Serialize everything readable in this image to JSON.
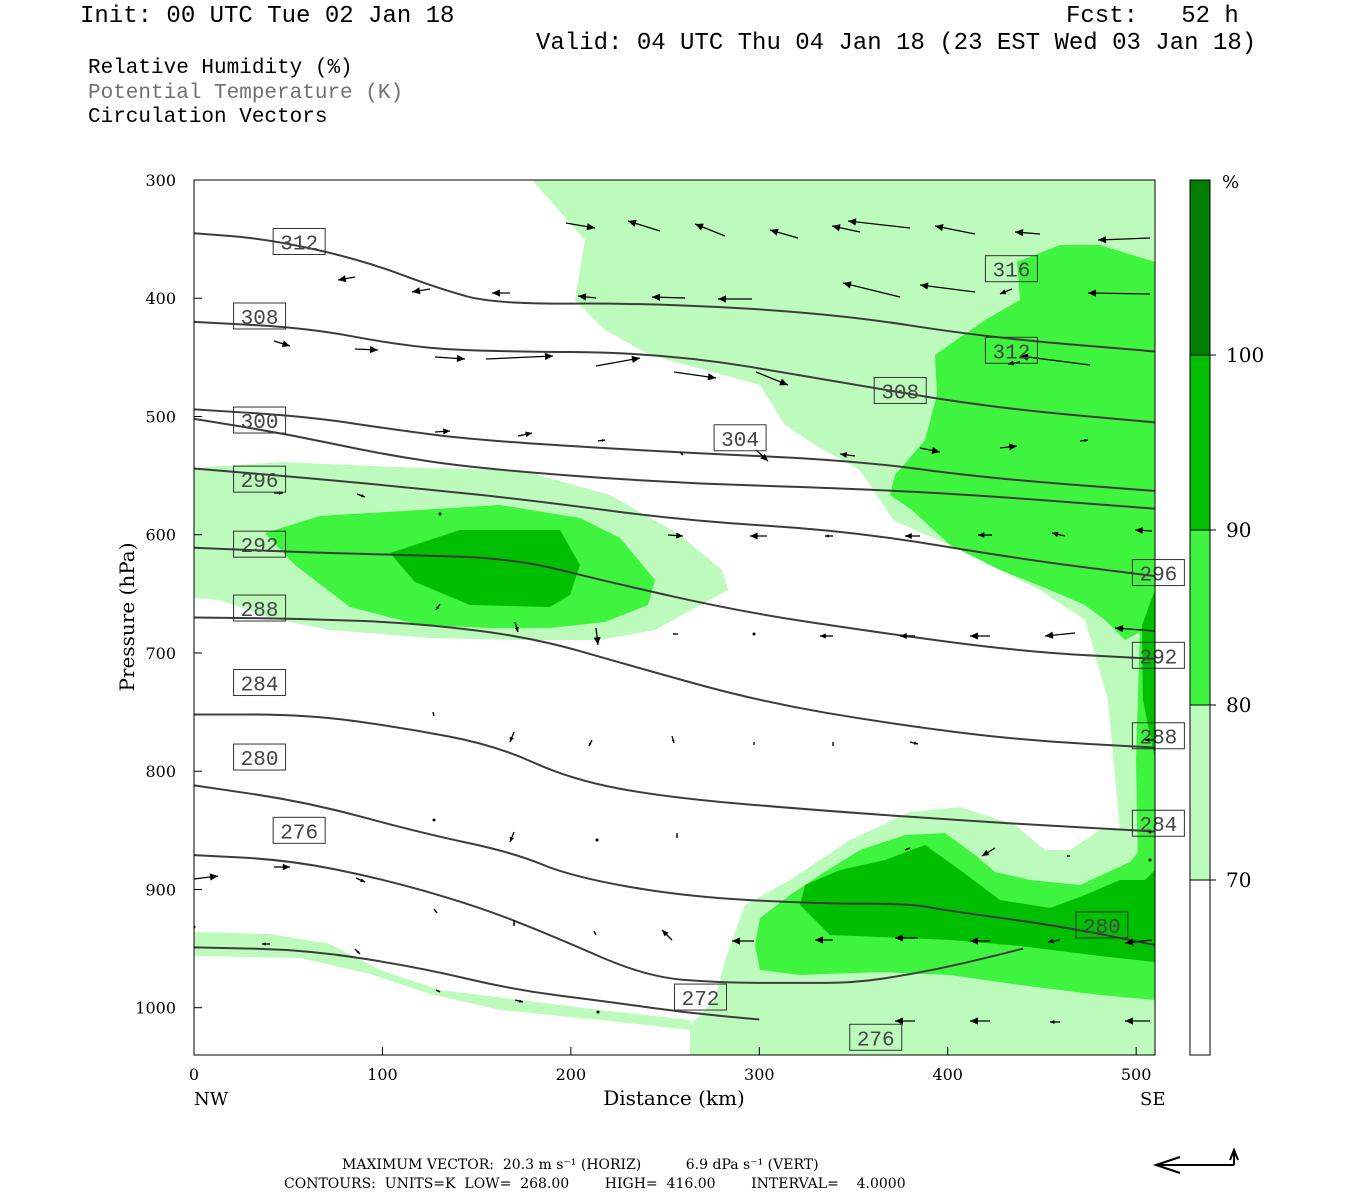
{
  "header": {
    "init": "Init: 00 UTC Tue 02 Jan 18",
    "fcst": "Fcst:   52 h",
    "valid": "Valid: 04 UTC Thu 04 Jan 18 (23 EST Wed 03 Jan 18)"
  },
  "legend": {
    "rh": "Relative Humidity (%)",
    "theta": "Potential Temperature (K)",
    "vectors": "Circulation Vectors"
  },
  "colors": {
    "rh70": "#bdfbbd",
    "rh80": "#3ff43f",
    "rh90": "#00bf00",
    "rh100": "#007f00",
    "contour": "#3c3c3c",
    "theta_label": "#707070"
  },
  "chart_data": {
    "type": "cross-section",
    "xlabel": "Distance (km)",
    "ylabel": "Pressure (hPa)",
    "xlim": [
      0,
      510
    ],
    "ylim": [
      1040,
      300
    ],
    "xticks": [
      0,
      100,
      200,
      300,
      400,
      500
    ],
    "yticks": [
      300,
      400,
      500,
      600,
      700,
      800,
      900,
      1000
    ],
    "left_end_label": "NW",
    "right_end_label": "SE",
    "colorbar": {
      "unit": "%",
      "levels": [
        70,
        80,
        90,
        100
      ],
      "colors": [
        "#ffffff",
        "#bdfbbd",
        "#3ff43f",
        "#00bf00",
        "#007f00"
      ]
    },
    "theta_contours": [
      {
        "value": 312,
        "points": [
          [
            0,
            345
          ],
          [
            40,
            350
          ],
          [
            90,
            368
          ],
          [
            130,
            392
          ],
          [
            160,
            405
          ],
          [
            240,
            404
          ],
          [
            340,
            413
          ],
          [
            420,
            433
          ],
          [
            510,
            445
          ]
        ]
      },
      {
        "value": 308,
        "points": [
          [
            0,
            420
          ],
          [
            60,
            425
          ],
          [
            110,
            440
          ],
          [
            150,
            445
          ],
          [
            250,
            446
          ],
          [
            340,
            470
          ],
          [
            420,
            492
          ],
          [
            510,
            505
          ]
        ]
      },
      {
        "value": 304,
        "points": [
          [
            0,
            494
          ],
          [
            60,
            500
          ],
          [
            110,
            512
          ],
          [
            150,
            520
          ],
          [
            250,
            530
          ],
          [
            350,
            537
          ],
          [
            420,
            552
          ],
          [
            510,
            563
          ]
        ]
      },
      {
        "value": 300,
        "points": [
          [
            0,
            502
          ],
          [
            50,
            515
          ],
          [
            100,
            532
          ],
          [
            150,
            544
          ],
          [
            250,
            556
          ],
          [
            350,
            561
          ],
          [
            420,
            567
          ],
          [
            510,
            578
          ]
        ]
      },
      {
        "value": 296,
        "points": [
          [
            0,
            544
          ],
          [
            60,
            552
          ],
          [
            120,
            561
          ],
          [
            180,
            571
          ],
          [
            260,
            588
          ],
          [
            350,
            597
          ],
          [
            440,
            621
          ],
          [
            510,
            635
          ]
        ]
      },
      {
        "value": 292,
        "points": [
          [
            0,
            611
          ],
          [
            60,
            615
          ],
          [
            110,
            617
          ],
          [
            170,
            620
          ],
          [
            220,
            640
          ],
          [
            290,
            665
          ],
          [
            360,
            682
          ],
          [
            440,
            699
          ],
          [
            510,
            705
          ]
        ]
      },
      {
        "value": 288,
        "points": [
          [
            0,
            670
          ],
          [
            60,
            671
          ],
          [
            120,
            675
          ],
          [
            180,
            687
          ],
          [
            230,
            710
          ],
          [
            300,
            741
          ],
          [
            370,
            760
          ],
          [
            440,
            774
          ],
          [
            510,
            780
          ]
        ]
      },
      {
        "value": 284,
        "points": [
          [
            0,
            752
          ],
          [
            60,
            752
          ],
          [
            110,
            763
          ],
          [
            160,
            778
          ],
          [
            200,
            807
          ],
          [
            250,
            822
          ],
          [
            330,
            833
          ],
          [
            420,
            843
          ],
          [
            510,
            851
          ]
        ]
      },
      {
        "value": 280,
        "points": [
          [
            0,
            812
          ],
          [
            60,
            826
          ],
          [
            120,
            852
          ],
          [
            170,
            869
          ],
          [
            200,
            889
          ],
          [
            260,
            906
          ],
          [
            330,
            912
          ],
          [
            380,
            912
          ],
          [
            400,
            918
          ],
          [
            460,
            931
          ],
          [
            510,
            947
          ]
        ]
      },
      {
        "value": 276,
        "points": [
          [
            0,
            871
          ],
          [
            50,
            875
          ],
          [
            100,
            891
          ],
          [
            150,
            914
          ],
          [
            190,
            939
          ],
          [
            240,
            974
          ],
          [
            280,
            979
          ],
          [
            320,
            979
          ],
          [
            350,
            979
          ],
          [
            380,
            972
          ],
          [
            410,
            962
          ],
          [
            440,
            950
          ]
        ]
      },
      {
        "value": 272,
        "points": [
          [
            0,
            949
          ],
          [
            60,
            951
          ],
          [
            120,
            966
          ],
          [
            170,
            985
          ],
          [
            220,
            995
          ],
          [
            260,
            1004
          ],
          [
            300,
            1010
          ]
        ]
      }
    ],
    "theta_labels": [
      {
        "text": "312",
        "x": 42,
        "p": 352
      },
      {
        "text": "308",
        "x": 21,
        "p": 415
      },
      {
        "text": "300",
        "x": 21,
        "p": 503
      },
      {
        "text": "296",
        "x": 21,
        "p": 553
      },
      {
        "text": "292",
        "x": 21,
        "p": 608
      },
      {
        "text": "288",
        "x": 21,
        "p": 662
      },
      {
        "text": "284",
        "x": 21,
        "p": 725
      },
      {
        "text": "280",
        "x": 21,
        "p": 788
      },
      {
        "text": "276",
        "x": 42,
        "p": 850
      },
      {
        "text": "304",
        "x": 276,
        "p": 518
      },
      {
        "text": "308",
        "x": 361,
        "p": 478
      },
      {
        "text": "312",
        "x": 420,
        "p": 444
      },
      {
        "text": "316",
        "x": 420,
        "p": 375
      },
      {
        "text": "296",
        "x": 498,
        "p": 632
      },
      {
        "text": "292",
        "x": 498,
        "p": 702
      },
      {
        "text": "288",
        "x": 498,
        "p": 770
      },
      {
        "text": "284",
        "x": 498,
        "p": 844
      },
      {
        "text": "280",
        "x": 468,
        "p": 930
      },
      {
        "text": "272",
        "x": 255,
        "p": 991
      },
      {
        "text": "276",
        "x": 348,
        "p": 1025
      }
    ],
    "footer": {
      "max_vector": "MAXIMUM VECTOR:  20.3 m s⁻¹ (HORIZ)          6.9 dPa s⁻¹ (VERT)",
      "contours": "CONTOURS:  UNITS=K  LOW=  268.00        HIGH=  416.00        INTERVAL=    4.0000"
    }
  }
}
